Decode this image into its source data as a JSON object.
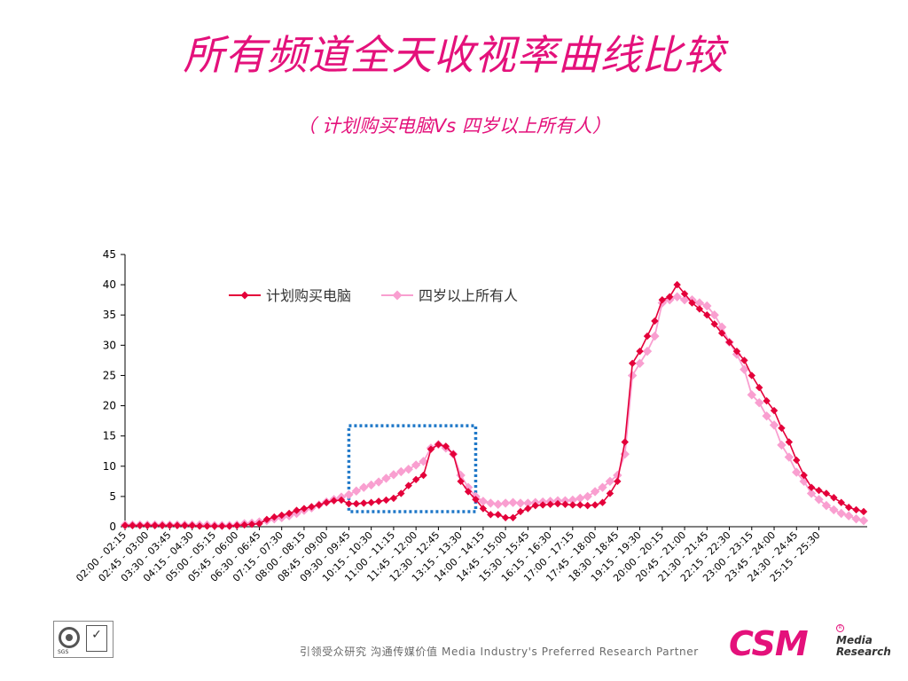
{
  "header": {
    "title": "所有频道全天收视率曲线比较",
    "subtitle": "（ 计划购买电脑Vs 四岁以上所有人）"
  },
  "footer": {
    "tagline": "引领受众研究  沟通传媒价值    Media Industry's Preferred Research Partner",
    "logo_text": "CSM",
    "logo_sub_1": "Media",
    "logo_sub_2": "Research",
    "cert_text": "SGS"
  },
  "colors": {
    "series1": "#e4003a",
    "series2": "#f99fd0",
    "title": "#e4117b",
    "highlight_box": "#1f78c8"
  },
  "chart_data": {
    "type": "line",
    "title": "",
    "xlabel": "",
    "ylabel": "",
    "ylim": [
      0,
      45
    ],
    "yticks": [
      0,
      5,
      10,
      15,
      20,
      25,
      30,
      35,
      40,
      45
    ],
    "legend_position": "top-left",
    "grid": false,
    "x_tick_labels": [
      "02:00 - 02:15",
      "02:45 - 03:00",
      "03:30 - 03:45",
      "04:15 - 04:30",
      "05:00 - 05:15",
      "05:45 - 06:00",
      "06:30 - 06:45",
      "07:15 - 07:30",
      "08:00 - 08:15",
      "08:45 - 09:00",
      "09:30 - 09:45",
      "10:15 - 10:30",
      "11:00 - 11:15",
      "11:45 - 12:00",
      "12:30 - 12:45",
      "13:15 - 13:30",
      "14:00 - 14:15",
      "14:45 - 15:00",
      "15:30 - 15:45",
      "16:15 - 16:30",
      "17:00 - 17:15",
      "17:45 - 18:00",
      "18:30 - 18:45",
      "19:15 - 19:30",
      "20:00 - 20:15",
      "20:45 - 21:00",
      "21:30 - 21:45",
      "22:15 - 22:30",
      "23:00 - 23:15",
      "23:45 - 24:00",
      "24:30 - 24:45",
      "25:15 - 25:30"
    ],
    "highlight_range": {
      "x_start": 30,
      "x_end": 47,
      "y_start": 2.5,
      "y_end": 16.7
    },
    "series": [
      {
        "name": "计划购买电脑",
        "values": [
          0.2,
          0.2,
          0.2,
          0.2,
          0.2,
          0.2,
          0.2,
          0.2,
          0.2,
          0.2,
          0.1,
          0.1,
          0.1,
          0.1,
          0.1,
          0.2,
          0.3,
          0.4,
          0.5,
          1.2,
          1.6,
          1.9,
          2.2,
          2.7,
          3.0,
          3.3,
          3.6,
          4.0,
          4.3,
          4.4,
          3.8,
          3.8,
          3.9,
          4.0,
          4.2,
          4.4,
          4.7,
          5.5,
          6.8,
          7.8,
          8.5,
          12.8,
          13.6,
          13.3,
          12.0,
          7.5,
          5.8,
          4.5,
          3.0,
          2.0,
          2.0,
          1.5,
          1.5,
          2.5,
          3.0,
          3.5,
          3.6,
          3.7,
          3.8,
          3.7,
          3.6,
          3.6,
          3.5,
          3.6,
          4.0,
          5.5,
          7.5,
          14.0,
          27.0,
          29.0,
          31.5,
          34.0,
          37.5,
          38.0,
          40.0,
          38.5,
          37.0,
          36.0,
          35.0,
          33.5,
          32.0,
          30.5,
          29.0,
          27.5,
          25.0,
          23.0,
          20.8,
          19.2,
          16.3,
          14.0,
          11.0,
          8.5,
          6.5,
          6.0,
          5.5,
          4.8,
          4.0,
          3.2,
          2.8,
          2.5
        ]
      },
      {
        "name": "四岁以上所有人",
        "values": [
          0.3,
          0.3,
          0.3,
          0.3,
          0.3,
          0.3,
          0.3,
          0.3,
          0.3,
          0.3,
          0.3,
          0.3,
          0.2,
          0.2,
          0.2,
          0.3,
          0.5,
          0.6,
          0.8,
          1.0,
          1.3,
          1.5,
          1.8,
          2.2,
          2.7,
          3.1,
          3.6,
          4.1,
          4.5,
          4.9,
          5.3,
          5.9,
          6.5,
          6.9,
          7.4,
          8.0,
          8.6,
          9.1,
          9.5,
          10.2,
          10.8,
          13.0,
          13.6,
          13.0,
          12.0,
          8.5,
          6.5,
          5.0,
          4.2,
          3.9,
          3.7,
          3.9,
          4.0,
          3.9,
          3.9,
          4.0,
          4.1,
          4.2,
          4.3,
          4.3,
          4.4,
          4.7,
          5.0,
          5.8,
          6.5,
          7.5,
          8.5,
          12.0,
          25.0,
          27.0,
          29.0,
          31.5,
          37.0,
          37.5,
          38.0,
          37.5,
          37.5,
          37.0,
          36.5,
          35.0,
          33.0,
          30.5,
          28.5,
          26.0,
          21.8,
          20.5,
          18.3,
          16.8,
          13.5,
          11.5,
          9.0,
          7.5,
          5.5,
          4.5,
          3.5,
          2.8,
          2.2,
          1.8,
          1.3,
          1.0
        ]
      }
    ]
  }
}
